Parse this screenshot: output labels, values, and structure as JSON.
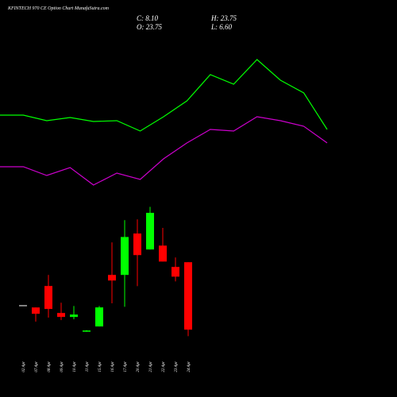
{
  "chart_data": [
    {
      "type": "candlestick",
      "title": "KFINTECH 970 CE Option Chart MunafaSutra.com",
      "summary": [
        {
          "label": "C: 8.10"
        },
        {
          "label": "H: 23.75"
        },
        {
          "label": "O: 23.75"
        },
        {
          "label": "L: 6.60"
        }
      ],
      "categories": [
        "02 Apr",
        "07 Apr",
        "08 Apr",
        "09 Apr",
        "10 Apr",
        "11 Apr",
        "15 Apr",
        "16 Apr",
        "17 Apr",
        "20 Apr",
        "21 Apr",
        "22 Apr",
        "23 Apr",
        "24 Apr"
      ],
      "open": [
        13.8,
        13.25,
        18.23,
        11.97,
        11.05,
        7.73,
        8.84,
        20.8,
        20.8,
        30.4,
        26.7,
        27.6,
        22.65,
        23.75
      ],
      "high": [
        13.8,
        13.25,
        20.8,
        14.36,
        13.6,
        8.0,
        13.6,
        28.35,
        33.5,
        33.7,
        36.6,
        31.7,
        24.85,
        23.75
      ],
      "low": [
        13.8,
        9.94,
        10.9,
        10.31,
        10.5,
        7.6,
        8.84,
        14.2,
        13.4,
        18.2,
        26.7,
        23.9,
        19.3,
        6.6
      ],
      "close": [
        13.8,
        11.78,
        12.9,
        11.05,
        11.6,
        7.9,
        13.26,
        19.5,
        29.6,
        25.4,
        35.2,
        23.9,
        20.4,
        8.1
      ],
      "up_color": "#00ff00",
      "down_color": "#ff0000",
      "flat_color": "#aaaaaa",
      "ylim": [
        5,
        40
      ]
    },
    {
      "type": "line",
      "series": [
        {
          "color": "#00ff00",
          "values": [
            77.5,
            77.5,
            74,
            76,
            73.5,
            74,
            67.5,
            76.5,
            86.5,
            103,
            97,
            112.5,
            99.5,
            91.5,
            68.5
          ]
        },
        {
          "color": "#cc00cc",
          "values": [
            45,
            45,
            39.5,
            44.5,
            33.5,
            41,
            37,
            50,
            60,
            68.5,
            67.5,
            76.5,
            74,
            70.5,
            60
          ]
        }
      ],
      "ylim": [
        0,
        150
      ]
    }
  ]
}
